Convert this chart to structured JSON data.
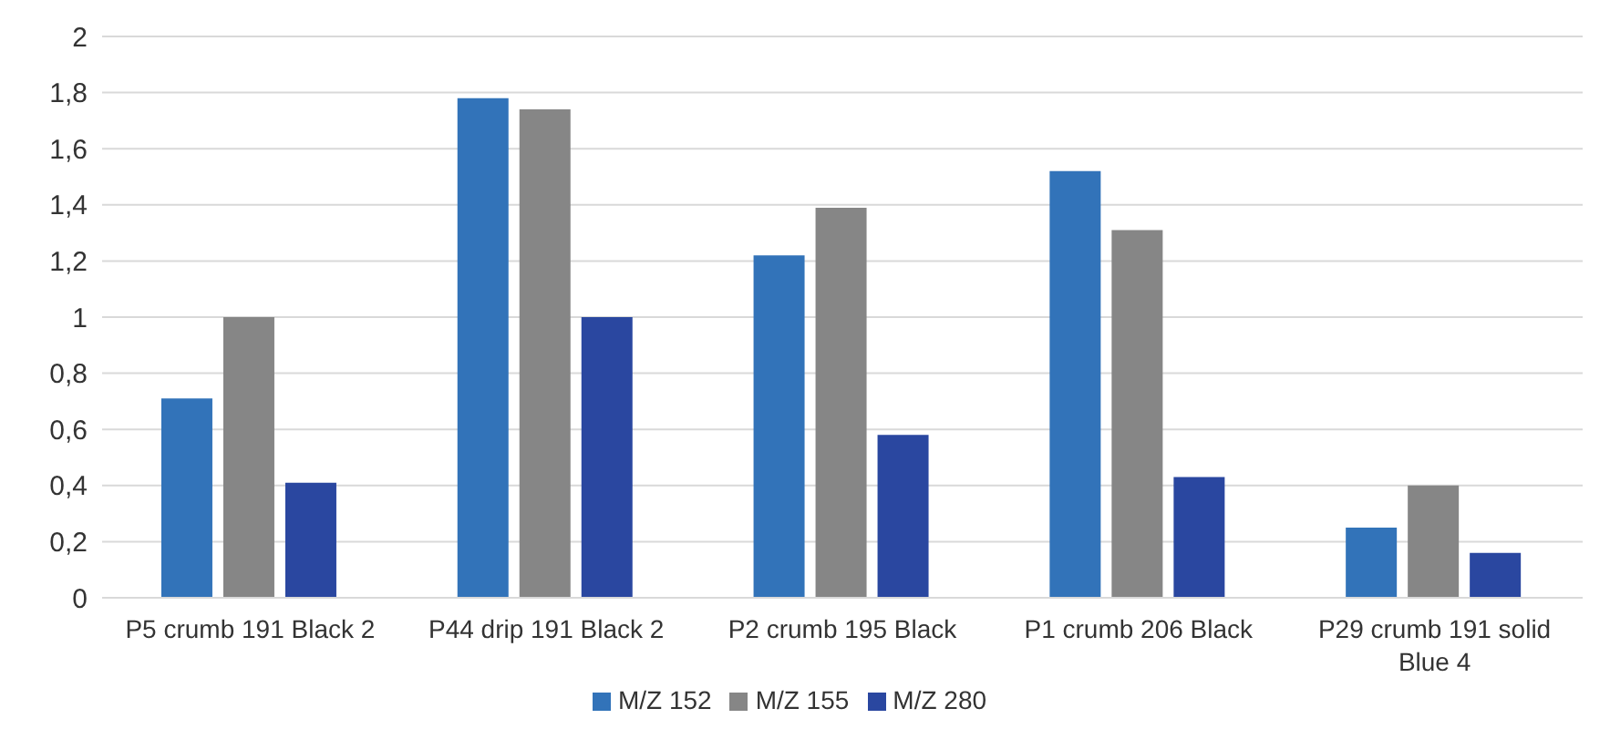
{
  "chart_data": {
    "type": "bar",
    "categories": [
      "P5 crumb 191 Black 2",
      "P44 drip 191 Black 2",
      "P2 crumb 195 Black",
      "P1 crumb 206 Black",
      "P29 crumb 191 solid Blue 4"
    ],
    "series": [
      {
        "name": "M/Z 152",
        "color": "#3273b9",
        "values": [
          0.71,
          1.78,
          1.22,
          1.52,
          0.25
        ]
      },
      {
        "name": "M/Z 155",
        "color": "#868686",
        "values": [
          1.0,
          1.74,
          1.39,
          1.31,
          0.4
        ]
      },
      {
        "name": "M/Z 280",
        "color": "#2a47a0",
        "values": [
          0.41,
          1.0,
          0.58,
          0.43,
          0.16
        ]
      }
    ],
    "ylim": [
      0,
      2
    ],
    "yticks": [
      {
        "value": 0,
        "label": "0"
      },
      {
        "value": 0.2,
        "label": "0,2"
      },
      {
        "value": 0.4,
        "label": "0,4"
      },
      {
        "value": 0.6,
        "label": "0,6"
      },
      {
        "value": 0.8,
        "label": "0,8"
      },
      {
        "value": 1,
        "label": "1"
      },
      {
        "value": 1.2,
        "label": "1,2"
      },
      {
        "value": 1.4,
        "label": "1,4"
      },
      {
        "value": 1.6,
        "label": "1,6"
      },
      {
        "value": 1.8,
        "label": "1,8"
      },
      {
        "value": 2,
        "label": "2"
      }
    ],
    "grid": "y",
    "legend": "bottom"
  }
}
